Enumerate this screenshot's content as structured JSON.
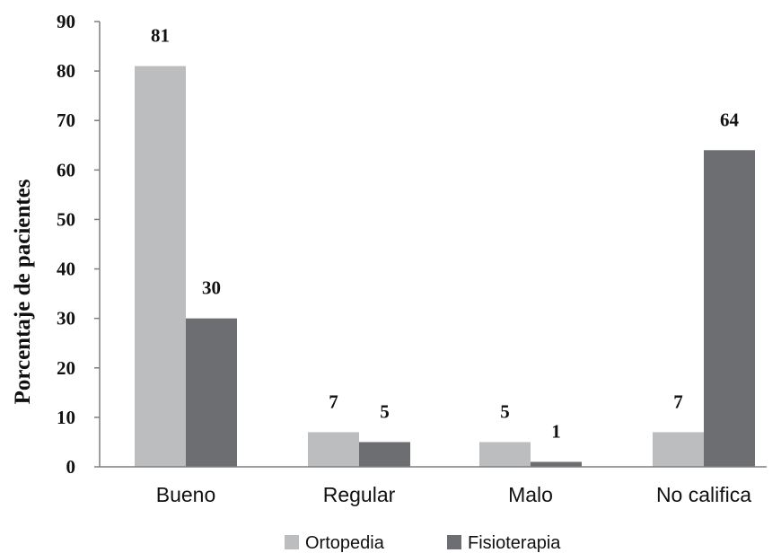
{
  "chart_data": {
    "type": "bar",
    "categories": [
      "Bueno",
      "Regular",
      "Malo",
      "No califica"
    ],
    "series": [
      {
        "name": "Ortopedia",
        "values": [
          81,
          7,
          5,
          7
        ],
        "color": "#bcbdbf"
      },
      {
        "name": "Fisioterapia",
        "values": [
          30,
          5,
          1,
          64
        ],
        "color": "#6d6e71"
      }
    ],
    "data_labels": [
      [
        "81",
        "7",
        "5",
        "7"
      ],
      [
        "30",
        "5",
        "1",
        "64"
      ]
    ],
    "ylabel": "Porcentaje de pacientes",
    "xlabel": "",
    "ylim": [
      0,
      90
    ],
    "yticks": [
      0,
      10,
      20,
      30,
      40,
      50,
      60,
      70,
      80,
      90
    ],
    "grid": false,
    "legend_position": "bottom"
  }
}
